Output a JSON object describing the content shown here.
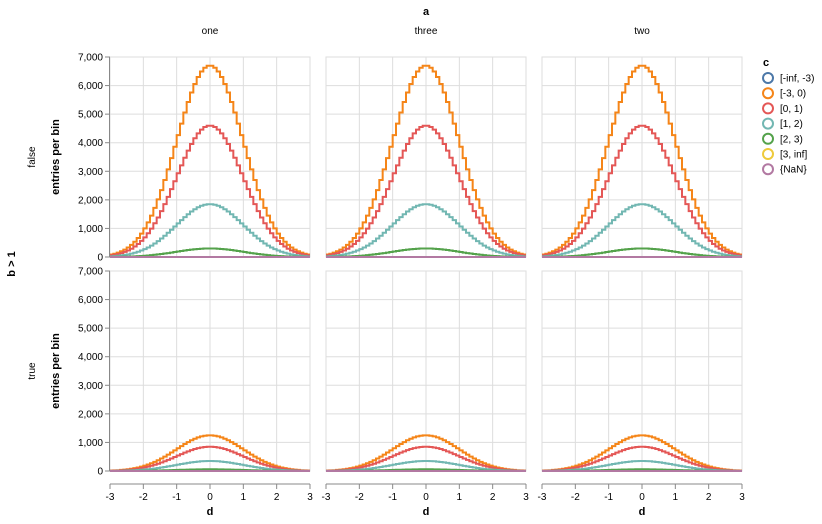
{
  "chart_data": {
    "type": "line",
    "column_facet_title": "a",
    "row_facet_title": "b > 1",
    "column_labels": [
      "one",
      "three",
      "two"
    ],
    "row_labels": [
      "false",
      "true"
    ],
    "xlabel": "d",
    "ylabel": "entries per bin",
    "xlim": [
      -3,
      3
    ],
    "ylim": [
      0,
      7000
    ],
    "x_ticks": [
      "-3",
      "-2",
      "-1",
      "0",
      "1",
      "2",
      "3"
    ],
    "y_ticks": [
      "0",
      "1,000",
      "2,000",
      "3,000",
      "4,000",
      "5,000",
      "6,000",
      "7,000"
    ],
    "grid": true,
    "legend_position": "right",
    "legend_title": "c",
    "series": [
      {
        "name": "[-inf, -3)",
        "color": "#4c78a8",
        "peak_false": 0,
        "peak_true": 0
      },
      {
        "name": "[-3, 0)",
        "color": "#f58518",
        "peak_false": 6700,
        "peak_true": 1250
      },
      {
        "name": "[0, 1)",
        "color": "#e45756",
        "peak_false": 4600,
        "peak_true": 850
      },
      {
        "name": "[1, 2)",
        "color": "#72b7b2",
        "peak_false": 1850,
        "peak_true": 350
      },
      {
        "name": "[2, 3)",
        "color": "#54a24b",
        "peak_false": 300,
        "peak_true": 60
      },
      {
        "name": "[3, inf]",
        "color": "#eeca3b",
        "peak_false": 0,
        "peak_true": 0
      },
      {
        "name": "{NaN}",
        "color": "#b279a2",
        "peak_false": 0,
        "peak_true": 0
      }
    ],
    "distribution_sigma": 1,
    "bin_width": 0.1
  }
}
